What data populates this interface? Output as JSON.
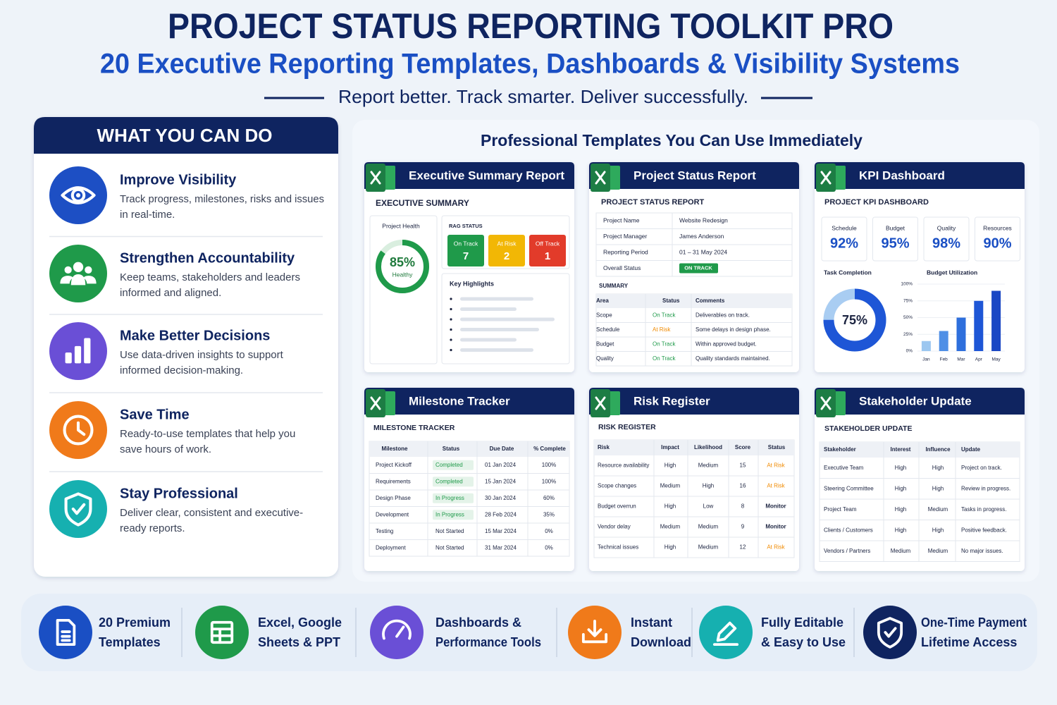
{
  "header": {
    "title": "PROJECT STATUS REPORTING TOOLKIT PRO",
    "subtitle": "20 Executive Reporting Templates, Dashboards & Visibility Systems",
    "tagline": "Report better. Track smarter. Deliver successfully."
  },
  "features": {
    "heading": "WHAT YOU CAN DO",
    "items": [
      {
        "title": "Improve Visibility",
        "lines": [
          "Track progress, milestones, risks and issues",
          "in real-time."
        ]
      },
      {
        "title": "Strengthen Accountability",
        "lines": [
          "Keep teams, stakeholders and leaders",
          "informed and aligned."
        ]
      },
      {
        "title": "Make Better Decisions",
        "lines": [
          "Use data-driven insights to support",
          "informed decision-making."
        ]
      },
      {
        "title": "Save Time",
        "lines": [
          "Ready-to-use templates that help you",
          "save hours of work."
        ]
      },
      {
        "title": "Stay Professional",
        "lines": [
          "Deliver clear, consistent and executive-",
          "ready reports."
        ]
      }
    ]
  },
  "status_colors": {
    "On Track": "#1f9a4a",
    "At Risk": "#f08a00",
    "Completed": "#1f9a4a",
    "In Progress": "#1f9a4a",
    "Monitor": "#1b2340"
  },
  "templates": {
    "heading": "Professional Templates You Can Use Immediately",
    "cards": [
      {
        "title": "Executive Summary Report",
        "heading": "EXECUTIVE SUMMARY",
        "health_label": "Project Health",
        "health": {
          "value": 85,
          "label": "85%"
        },
        "health_text": "Healthy",
        "rag_label": "RAG STATUS",
        "rag": [
          {
            "label": "On Track",
            "value": 7,
            "color": "#1f9a4a"
          },
          {
            "label": "At Risk",
            "value": 2,
            "color": "#f2b705"
          },
          {
            "label": "Off Track",
            "value": 1,
            "color": "#e23b2a"
          }
        ],
        "highlights_label": "Key Highlights"
      },
      {
        "title": "Project Status Report",
        "heading": "PROJECT STATUS REPORT",
        "info": [
          [
            "Project Name",
            "Website Redesign"
          ],
          [
            "Project Manager",
            "James Anderson"
          ],
          [
            "Reporting Period",
            "01 – 31 May 2024"
          ],
          [
            "Overall Status",
            "ON TRACK"
          ]
        ],
        "summary_label": "SUMMARY",
        "columns": [
          "Area",
          "Status",
          "Comments"
        ],
        "rows": [
          [
            "Scope",
            "On Track",
            "Deliverables on track."
          ],
          [
            "Schedule",
            "At Risk",
            "Some delays in design phase."
          ],
          [
            "Budget",
            "On Track",
            "Within approved budget."
          ],
          [
            "Quality",
            "On Track",
            "Quality standards maintained."
          ]
        ]
      },
      {
        "title": "KPI Dashboard",
        "heading": "PROJECT KPI DASHBOARD",
        "kpis": [
          {
            "label": "Schedule",
            "value": "92%"
          },
          {
            "label": "Budget",
            "value": "95%"
          },
          {
            "label": "Quality",
            "value": "98%"
          },
          {
            "label": "Resources",
            "value": "90%"
          }
        ],
        "task_label": "Task Completion",
        "task": {
          "value": 75,
          "label": "75%"
        },
        "budget_label": "Budget Utilization",
        "budget": {
          "categories": [
            "Jan",
            "Feb",
            "Mar",
            "Apr",
            "May"
          ],
          "values": [
            15,
            30,
            50,
            75,
            90
          ],
          "colors": [
            "#9cc7f0",
            "#4f8fe6",
            "#2e6fdc",
            "#1e56d6",
            "#1a47c4"
          ],
          "ylim": [
            0,
            100
          ],
          "yticks": [
            {
              "value": 0,
              "label": "0%"
            },
            {
              "value": 25,
              "label": "25%"
            },
            {
              "value": 50,
              "label": "50%"
            },
            {
              "value": 75,
              "label": "75%"
            },
            {
              "value": 100,
              "label": "100%"
            }
          ]
        }
      },
      {
        "title": "Milestone Tracker",
        "heading": "MILESTONE TRACKER",
        "columns": [
          "Milestone",
          "Status",
          "Due Date",
          "% Complete"
        ],
        "rows": [
          [
            "Project Kickoff",
            "Completed",
            "01 Jan 2024",
            "100%"
          ],
          [
            "Requirements",
            "Completed",
            "15 Jan 2024",
            "100%"
          ],
          [
            "Design Phase",
            "In Progress",
            "30 Jan 2024",
            "60%"
          ],
          [
            "Development",
            "In Progress",
            "28 Feb 2024",
            "35%"
          ],
          [
            "Testing",
            "Not Started",
            "15 Mar 2024",
            "0%"
          ],
          [
            "Deployment",
            "Not Started",
            "31 Mar 2024",
            "0%"
          ]
        ]
      },
      {
        "title": "Risk Register",
        "heading": "RISK REGISTER",
        "columns": [
          "Risk",
          "Impact",
          "Likelihood",
          "Score",
          "Status"
        ],
        "rows": [
          [
            "Resource availability",
            "High",
            "Medium",
            "15",
            "At Risk"
          ],
          [
            "Scope changes",
            "Medium",
            "High",
            "16",
            "At Risk"
          ],
          [
            "Budget overrun",
            "High",
            "Low",
            "8",
            "Monitor"
          ],
          [
            "Vendor delay",
            "Medium",
            "Medium",
            "9",
            "Monitor"
          ],
          [
            "Technical issues",
            "High",
            "Medium",
            "12",
            "At Risk"
          ]
        ]
      },
      {
        "title": "Stakeholder Update",
        "heading": "STAKEHOLDER UPDATE",
        "columns": [
          "Stakeholder",
          "Interest",
          "Influence",
          "Update"
        ],
        "rows": [
          [
            "Executive Team",
            "High",
            "High",
            "Project on track."
          ],
          [
            "Steering Committee",
            "High",
            "High",
            "Review in progress."
          ],
          [
            "Project Team",
            "High",
            "Medium",
            "Tasks in progress."
          ],
          [
            "Clients / Customers",
            "High",
            "High",
            "Positive feedback."
          ],
          [
            "Vendors / Partners",
            "Medium",
            "Medium",
            "No major issues."
          ]
        ]
      }
    ]
  },
  "footer": {
    "items": [
      {
        "lines": [
          "20 Premium",
          "Templates"
        ]
      },
      {
        "lines": [
          "Excel, Google",
          "Sheets & PPT"
        ]
      },
      {
        "lines": [
          "Dashboards &",
          "Performance Tools"
        ]
      },
      {
        "lines": [
          "Instant",
          "Download"
        ]
      },
      {
        "lines": [
          "Fully Editable",
          "& Easy to Use"
        ]
      },
      {
        "lines": [
          "One-Time Payment",
          "Lifetime Access"
        ]
      }
    ]
  }
}
